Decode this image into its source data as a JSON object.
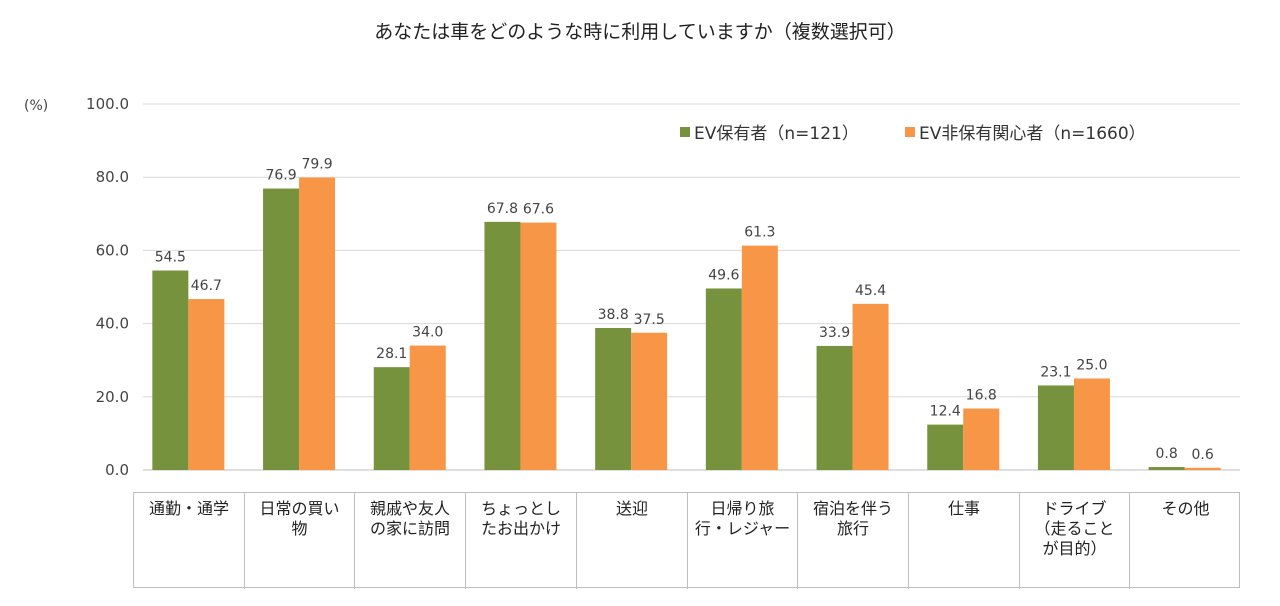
{
  "chart_data": {
    "type": "bar",
    "title": "あなたは車をどのような時に利用していますか（複数選択可）",
    "ylabel": "(%)",
    "ylim": [
      0,
      100
    ],
    "yticks": [
      "0.0",
      "20.0",
      "40.0",
      "60.0",
      "80.0",
      "100.0"
    ],
    "categories": [
      "通勤・通学",
      "日常の買い\n物",
      "親戚や友人\nの家に訪問",
      "ちょっとし\nたお出かけ",
      "送迎",
      "日帰り旅\n行・レジャー",
      "宿泊を伴う\n旅行",
      "仕事",
      "ドライブ\n（走ること\nが目的）",
      "その他"
    ],
    "series": [
      {
        "name": "EV保有者（n=121）",
        "color": "#76923c",
        "values": [
          54.5,
          76.9,
          28.1,
          67.8,
          38.8,
          49.6,
          33.9,
          12.4,
          23.1,
          0.8
        ],
        "labels": [
          "54.5",
          "76.9",
          "28.1",
          "67.8",
          "38.8",
          "49.6",
          "33.9",
          "12.4",
          "23.1",
          "0.8"
        ]
      },
      {
        "name": "EV非保有関心者（n=1660）",
        "color": "#f79646",
        "values": [
          46.7,
          79.9,
          34.0,
          67.6,
          37.5,
          61.3,
          45.4,
          16.8,
          25.0,
          0.6
        ],
        "labels": [
          "46.7",
          "79.9",
          "34.0",
          "67.6",
          "37.5",
          "61.3",
          "45.4",
          "16.8",
          "25.0",
          "0.6"
        ]
      }
    ],
    "legend_position": "top-right",
    "grid": true
  }
}
